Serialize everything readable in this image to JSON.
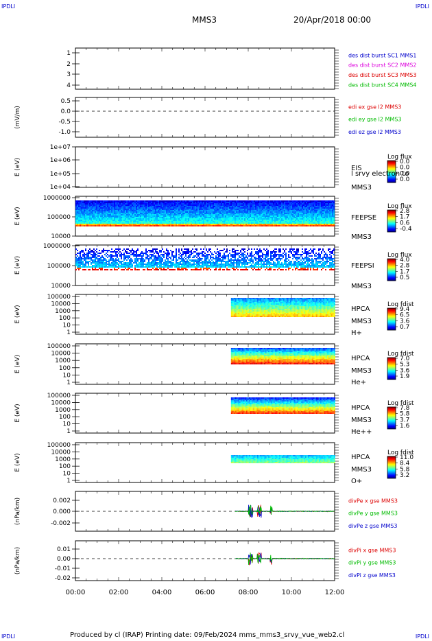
{
  "corner_label": "IPDLI",
  "header": {
    "spacecraft": "MMS3",
    "date": "20/Apr/2018 00:00"
  },
  "footer": "Produced by cl (IRAP)   Printing date: 09/Feb/2024   mms_mms3_srvy_vue_web2.cl",
  "colors": {
    "red": "#dd0000",
    "green": "#00bb00",
    "blue": "#0000cc",
    "magenta": "#dd00dd"
  },
  "chart_data": {
    "type": "line",
    "title": "MMS3",
    "time_range": [
      "00:00",
      "12:00"
    ],
    "x_tick_labels": [
      "00:00",
      "02:00",
      "04:00",
      "06:00",
      "08:00",
      "10:00",
      "12:00"
    ],
    "panels": [
      {
        "id": "des",
        "ylabel": "",
        "ylim": [
          0.6,
          4.4
        ],
        "ticks": [
          "1",
          "2",
          "3",
          "4"
        ],
        "legend": [
          {
            "text": "des dist burst SC1 MMS1",
            "color": "#0000cc"
          },
          {
            "text": "des dist burst SC2 MMS2",
            "color": "#dd00dd"
          },
          {
            "text": "des dist burst SC3 MMS3",
            "color": "#dd0000"
          },
          {
            "text": "des dist burst SC4 MMS4",
            "color": "#00bb00"
          }
        ]
      },
      {
        "id": "edi",
        "ylabel": "(mV/m)",
        "ylim": [
          -1.3,
          0.7
        ],
        "ticks": [
          "0.5",
          "0.0",
          "-0.5",
          "-1.0"
        ],
        "legend": [
          {
            "text": "edi ex gse l2 MMS3",
            "color": "#dd0000"
          },
          {
            "text": "edi ey gse l2 MMS3",
            "color": "#00bb00"
          },
          {
            "text": "edi ez gse l2 MMS3",
            "color": "#0000cc"
          }
        ]
      },
      {
        "id": "eis",
        "ylabel": "E (eV)",
        "log": true,
        "ticks": [
          "1e+07",
          "1e+06",
          "1e+05",
          "1e+04"
        ],
        "labels": [
          "EIS",
          "l srvy electron to",
          "MMS3"
        ],
        "colorbar": {
          "title": "Log flux",
          "values": [
            "0.0",
            "0.0",
            "0.0",
            "0.0"
          ]
        }
      },
      {
        "id": "feepse",
        "ylabel": "E (eV)",
        "log": true,
        "ticks": [
          "1000000",
          "100000",
          "10000"
        ],
        "labels": [
          "FEEPSE",
          "MMS3"
        ],
        "colorbar": {
          "title": "Log flux",
          "values": [
            "2.8",
            "1.7",
            "0.6",
            "-0.4"
          ]
        }
      },
      {
        "id": "feepsi",
        "ylabel": "E (eV)",
        "log": true,
        "ticks": [
          "1000000",
          "100000",
          "10000"
        ],
        "labels": [
          "FEEPSI",
          "MMS3"
        ],
        "colorbar": {
          "title": "Log flux",
          "values": [
            "4.0",
            "2.8",
            "1.7",
            "0.5"
          ]
        }
      },
      {
        "id": "hpca_h",
        "ylabel": "E (eV)",
        "log": true,
        "ticks": [
          "100000",
          "10000",
          "1000",
          "100",
          "10",
          "1"
        ],
        "labels": [
          "HPCA",
          "MMS3",
          "H+"
        ],
        "colorbar": {
          "title": "Log fdist",
          "values": [
            "9.4",
            "6.5",
            "3.6",
            "0.7"
          ]
        }
      },
      {
        "id": "hpca_he",
        "ylabel": "E (eV)",
        "log": true,
        "ticks": [
          "100000",
          "10000",
          "1000",
          "100",
          "10",
          "1"
        ],
        "labels": [
          "HPCA",
          "MMS3",
          "He+"
        ],
        "colorbar": {
          "title": "Log fdist",
          "values": [
            "7.0",
            "5.3",
            "3.6",
            "1.9"
          ]
        }
      },
      {
        "id": "hpca_hepp",
        "ylabel": "E (eV)",
        "log": true,
        "ticks": [
          "100000",
          "10000",
          "1000",
          "100",
          "10",
          "1"
        ],
        "labels": [
          "HPCA",
          "MMS3",
          "He++"
        ],
        "colorbar": {
          "title": "Log fdist",
          "values": [
            "7.8",
            "5.8",
            "3.7",
            "1.6"
          ]
        }
      },
      {
        "id": "hpca_o",
        "ylabel": "E (eV)",
        "log": true,
        "ticks": [
          "100000",
          "10000",
          "1000",
          "100",
          "10",
          "1"
        ],
        "labels": [
          "HPCA",
          "MMS3",
          "O+"
        ],
        "colorbar": {
          "title": "Log fdist",
          "values": [
            "11.0",
            "8.4",
            "5.8",
            "3.2"
          ]
        }
      },
      {
        "id": "divpe",
        "ylabel": "(nPa/km)",
        "ylim": [
          -0.0035,
          0.0035
        ],
        "ticks": [
          "0.002",
          "0.000",
          "-0.002"
        ],
        "legend": [
          {
            "text": "divPe x gse MMS3",
            "color": "#dd0000"
          },
          {
            "text": "divPe y gse MMS3",
            "color": "#00bb00"
          },
          {
            "text": "divPe z gse MMS3",
            "color": "#0000cc"
          }
        ]
      },
      {
        "id": "divpi",
        "ylabel": "(nPa/km)",
        "ylim": [
          -0.0225,
          0.0175
        ],
        "ticks": [
          "0.01",
          "0.00",
          "-0.01",
          "-0.02"
        ],
        "legend": [
          {
            "text": "divPi x gse MMS3",
            "color": "#dd0000"
          },
          {
            "text": "divPi y gse MMS3",
            "color": "#00bb00"
          },
          {
            "text": "divPi z gse MMS3",
            "color": "#0000cc"
          }
        ]
      }
    ]
  }
}
